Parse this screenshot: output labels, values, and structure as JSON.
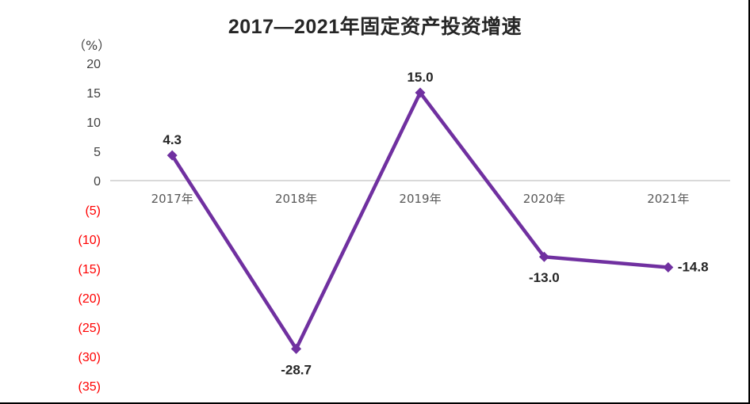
{
  "chart_data": {
    "type": "line",
    "title": "2017—2021年固定资产投资增速",
    "unit_label": "（%）",
    "xlabel": "",
    "ylabel": "%",
    "categories": [
      "2017年",
      "2018年",
      "2019年",
      "2020年",
      "2021年"
    ],
    "series": [
      {
        "name": "固定资产投资增速",
        "values": [
          4.3,
          -28.7,
          15.0,
          -13.0,
          -14.8
        ],
        "labels": [
          "4.3",
          "-28.7",
          "15.0",
          "-13.0",
          "-14.8"
        ],
        "color": "#7030A0",
        "marker": "diamond"
      }
    ],
    "ylim": [
      -35,
      20
    ],
    "yticks": [
      20,
      15,
      10,
      5,
      0,
      -5,
      -10,
      -15,
      -20,
      -25,
      -30,
      -35
    ],
    "ytick_labels": [
      "20",
      "15",
      "10",
      "5",
      "0",
      "(5)",
      "(10)",
      "(15)",
      "(20)",
      "(25)",
      "(30)",
      "(35)"
    ],
    "ytick_colors": {
      "positive": "#404040",
      "negative": "#FF0000"
    },
    "grid": false,
    "zero_line_color": "#D9D9D9",
    "legend": "none"
  }
}
